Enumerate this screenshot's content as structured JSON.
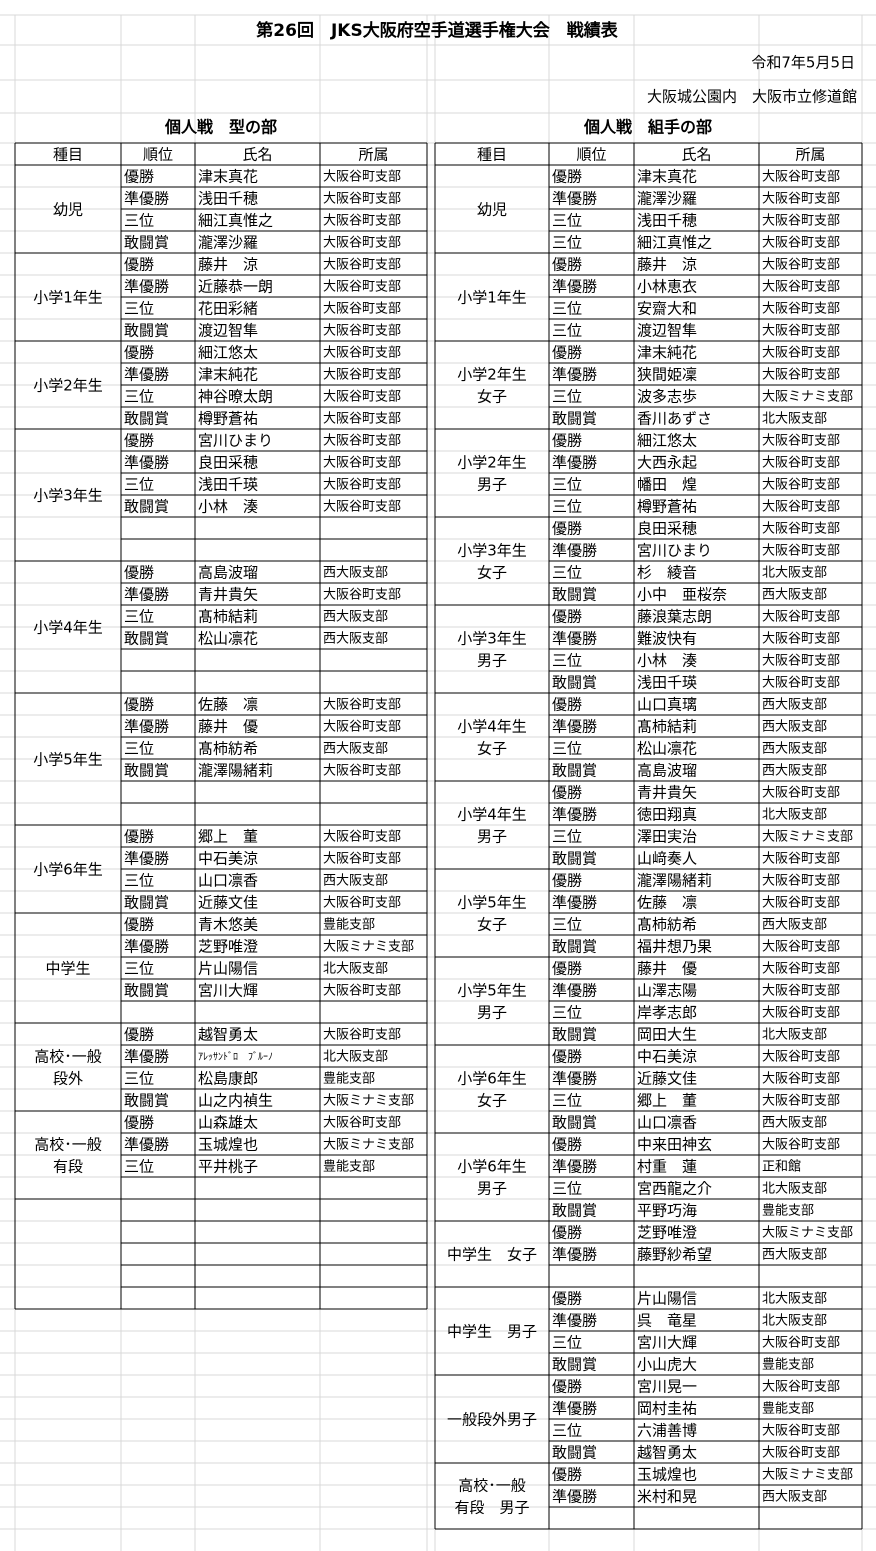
{
  "header": {
    "title": "第26回　JKS大阪府空手道選手権大会　戦績表",
    "date": "令和7年5月5日",
    "venue": "大阪城公園内　大阪市立修道館"
  },
  "left": {
    "heading": "個人戦　型の部",
    "columns": [
      "種目",
      "順位",
      "氏名",
      "所属"
    ],
    "groups": [
      {
        "category": [
          "幼児"
        ],
        "rows": [
          [
            "優勝",
            "津末真花",
            "大阪谷町支部"
          ],
          [
            "準優勝",
            "浅田千穂",
            "大阪谷町支部"
          ],
          [
            "三位",
            "細江真惟之",
            "大阪谷町支部"
          ],
          [
            "敢闘賞",
            "瀧澤沙羅",
            "大阪谷町支部"
          ]
        ]
      },
      {
        "category": [
          "小学1年生"
        ],
        "rows": [
          [
            "優勝",
            "藤井　涼",
            "大阪谷町支部"
          ],
          [
            "準優勝",
            "近藤恭一朗",
            "大阪谷町支部"
          ],
          [
            "三位",
            "花田彩緒",
            "大阪谷町支部"
          ],
          [
            "敢闘賞",
            "渡辺智隼",
            "大阪谷町支部"
          ]
        ]
      },
      {
        "category": [
          "小学2年生"
        ],
        "rows": [
          [
            "優勝",
            "細江悠太",
            "大阪谷町支部"
          ],
          [
            "準優勝",
            "津末純花",
            "大阪谷町支部"
          ],
          [
            "三位",
            "神谷暸太朗",
            "大阪谷町支部"
          ],
          [
            "敢闘賞",
            "樽野蒼祐",
            "大阪谷町支部"
          ]
        ]
      },
      {
        "category": [
          "小学3年生"
        ],
        "rows": [
          [
            "優勝",
            "宮川ひまり",
            "大阪谷町支部"
          ],
          [
            "準優勝",
            "良田采穂",
            "大阪谷町支部"
          ],
          [
            "三位",
            "浅田千瑛",
            "大阪谷町支部"
          ],
          [
            "敢闘賞",
            "小林　湊",
            "大阪谷町支部"
          ]
        ]
      },
      {
        "category": [
          "小学4年生"
        ],
        "rows": [
          [
            "優勝",
            "高島波瑠",
            "西大阪支部"
          ],
          [
            "準優勝",
            "青井貴矢",
            "大阪谷町支部"
          ],
          [
            "三位",
            "髙柿結莉",
            "西大阪支部"
          ],
          [
            "敢闘賞",
            "松山凛花",
            "西大阪支部"
          ]
        ]
      },
      {
        "category": [
          "小学5年生"
        ],
        "rows": [
          [
            "優勝",
            "佐藤　凛",
            "大阪谷町支部"
          ],
          [
            "準優勝",
            "藤井　優",
            "大阪谷町支部"
          ],
          [
            "三位",
            "髙柿紡希",
            "西大阪支部"
          ],
          [
            "敢闘賞",
            "瀧澤陽緒莉",
            "大阪谷町支部"
          ]
        ]
      },
      {
        "category": [
          "小学6年生"
        ],
        "rows": [
          [
            "優勝",
            "郷上　董",
            "大阪谷町支部"
          ],
          [
            "準優勝",
            "中石美涼",
            "大阪谷町支部"
          ],
          [
            "三位",
            "山口凛香",
            "西大阪支部"
          ],
          [
            "敢闘賞",
            "近藤文佳",
            "大阪谷町支部"
          ]
        ]
      },
      {
        "category": [
          "中学生"
        ],
        "rows": [
          [
            "優勝",
            "青木悠美",
            "豊能支部"
          ],
          [
            "準優勝",
            "芝野唯澄",
            "大阪ミナミ支部"
          ],
          [
            "三位",
            "片山陽信",
            "北大阪支部"
          ],
          [
            "敢闘賞",
            "宮川大輝",
            "大阪谷町支部"
          ]
        ]
      },
      {
        "category": [
          "高校･一般",
          "段外"
        ],
        "rows": [
          [
            "優勝",
            "越智勇太",
            "大阪谷町支部"
          ],
          [
            "準優勝",
            "ｱﾚｯｻﾝﾄﾞﾛ　ﾌﾞﾙｰﾉ",
            "北大阪支部"
          ],
          [
            "三位",
            "松島康郎",
            "豊能支部"
          ],
          [
            "敢闘賞",
            "山之内禎生",
            "大阪ミナミ支部"
          ]
        ]
      },
      {
        "category": [
          "高校･一般",
          "有段"
        ],
        "rows": [
          [
            "優勝",
            "山森雄太",
            "大阪谷町支部"
          ],
          [
            "準優勝",
            "玉城煌也",
            "大阪ミナミ支部"
          ],
          [
            "三位",
            "平井桃子",
            "豊能支部"
          ]
        ]
      }
    ]
  },
  "right": {
    "heading": "個人戦　組手の部",
    "columns": [
      "種目",
      "順位",
      "氏名",
      "所属"
    ],
    "groups": [
      {
        "category": [
          "幼児"
        ],
        "rows": [
          [
            "優勝",
            "津末真花",
            "大阪谷町支部"
          ],
          [
            "準優勝",
            "瀧澤沙羅",
            "大阪谷町支部"
          ],
          [
            "三位",
            "浅田千穂",
            "大阪谷町支部"
          ],
          [
            "三位",
            "細江真惟之",
            "大阪谷町支部"
          ]
        ]
      },
      {
        "category": [
          "小学1年生"
        ],
        "rows": [
          [
            "優勝",
            "藤井　涼",
            "大阪谷町支部"
          ],
          [
            "準優勝",
            "小林恵衣",
            "大阪谷町支部"
          ],
          [
            "三位",
            "安齋大和",
            "大阪谷町支部"
          ],
          [
            "三位",
            "渡辺智隼",
            "大阪谷町支部"
          ]
        ]
      },
      {
        "category": [
          "小学2年生",
          "女子"
        ],
        "rows": [
          [
            "優勝",
            "津末純花",
            "大阪谷町支部"
          ],
          [
            "準優勝",
            "狭間姫凜",
            "大阪谷町支部"
          ],
          [
            "三位",
            "波多志歩",
            "大阪ミナミ支部"
          ],
          [
            "敢闘賞",
            "香川あずさ",
            "北大阪支部"
          ]
        ]
      },
      {
        "category": [
          "小学2年生",
          "男子"
        ],
        "rows": [
          [
            "優勝",
            "細江悠太",
            "大阪谷町支部"
          ],
          [
            "準優勝",
            "大西永起",
            "大阪谷町支部"
          ],
          [
            "三位",
            "幡田　煌",
            "大阪谷町支部"
          ],
          [
            "三位",
            "樽野蒼祐",
            "大阪谷町支部"
          ]
        ]
      },
      {
        "category": [
          "小学3年生",
          "女子"
        ],
        "rows": [
          [
            "優勝",
            "良田采穂",
            "大阪谷町支部"
          ],
          [
            "準優勝",
            "宮川ひまり",
            "大阪谷町支部"
          ],
          [
            "三位",
            "杉　綾音",
            "北大阪支部"
          ],
          [
            "敢闘賞",
            "小中　亜桜奈",
            "西大阪支部"
          ]
        ]
      },
      {
        "category": [
          "小学3年生",
          "男子"
        ],
        "rows": [
          [
            "優勝",
            "藤浪葉志朗",
            "大阪谷町支部"
          ],
          [
            "準優勝",
            "難波快有",
            "大阪谷町支部"
          ],
          [
            "三位",
            "小林　湊",
            "大阪谷町支部"
          ],
          [
            "敢闘賞",
            "浅田千瑛",
            "大阪谷町支部"
          ]
        ]
      },
      {
        "category": [
          "小学4年生",
          "女子"
        ],
        "rows": [
          [
            "優勝",
            "山口真璃",
            "西大阪支部"
          ],
          [
            "準優勝",
            "髙柿結莉",
            "西大阪支部"
          ],
          [
            "三位",
            "松山凛花",
            "西大阪支部"
          ],
          [
            "敢闘賞",
            "高島波瑠",
            "西大阪支部"
          ]
        ]
      },
      {
        "category": [
          "小学4年生",
          "男子"
        ],
        "rows": [
          [
            "優勝",
            "青井貴矢",
            "大阪谷町支部"
          ],
          [
            "準優勝",
            "徳田翔真",
            "北大阪支部"
          ],
          [
            "三位",
            "澤田実治",
            "大阪ミナミ支部"
          ],
          [
            "敢闘賞",
            "山﨑奏人",
            "大阪谷町支部"
          ]
        ]
      },
      {
        "category": [
          "小学5年生",
          "女子"
        ],
        "rows": [
          [
            "優勝",
            "瀧澤陽緒莉",
            "大阪谷町支部"
          ],
          [
            "準優勝",
            "佐藤　凛",
            "大阪谷町支部"
          ],
          [
            "三位",
            "髙柿紡希",
            "西大阪支部"
          ],
          [
            "敢闘賞",
            "福井想乃果",
            "大阪谷町支部"
          ]
        ]
      },
      {
        "category": [
          "小学5年生",
          "男子"
        ],
        "rows": [
          [
            "優勝",
            "藤井　優",
            "大阪谷町支部"
          ],
          [
            "準優勝",
            "山澤志陽",
            "大阪谷町支部"
          ],
          [
            "三位",
            "岸孝志郎",
            "大阪谷町支部"
          ],
          [
            "敢闘賞",
            "岡田大生",
            "北大阪支部"
          ]
        ]
      },
      {
        "category": [
          "小学6年生",
          "女子"
        ],
        "rows": [
          [
            "優勝",
            "中石美涼",
            "大阪谷町支部"
          ],
          [
            "準優勝",
            "近藤文佳",
            "大阪谷町支部"
          ],
          [
            "三位",
            "郷上　董",
            "大阪谷町支部"
          ],
          [
            "敢闘賞",
            "山口凛香",
            "西大阪支部"
          ]
        ]
      },
      {
        "category": [
          "小学6年生",
          "男子"
        ],
        "rows": [
          [
            "優勝",
            "中来田神玄",
            "大阪谷町支部"
          ],
          [
            "準優勝",
            "村重　蓮",
            "正和館"
          ],
          [
            "三位",
            "宮西龍之介",
            "北大阪支部"
          ],
          [
            "敢闘賞",
            "平野巧海",
            "豊能支部"
          ]
        ]
      },
      {
        "category": [
          "中学生　女子"
        ],
        "rows": [
          [
            "優勝",
            "芝野唯澄",
            "大阪ミナミ支部"
          ],
          [
            "準優勝",
            "藤野紗希望",
            "西大阪支部"
          ]
        ]
      },
      {
        "category": [
          "中学生　男子"
        ],
        "rows": [
          [
            "優勝",
            "片山陽信",
            "北大阪支部"
          ],
          [
            "準優勝",
            "呉　竜星",
            "北大阪支部"
          ],
          [
            "三位",
            "宮川大輝",
            "大阪谷町支部"
          ],
          [
            "敢闘賞",
            "小山虎大",
            "豊能支部"
          ]
        ]
      },
      {
        "category": [
          "一般段外男子"
        ],
        "rows": [
          [
            "優勝",
            "宮川晃一",
            "大阪谷町支部"
          ],
          [
            "準優勝",
            "岡村圭祐",
            "豊能支部"
          ],
          [
            "三位",
            "六浦善博",
            "大阪谷町支部"
          ],
          [
            "敢闘賞",
            "越智勇太",
            "大阪谷町支部"
          ]
        ]
      },
      {
        "category": [
          "高校･一般",
          "有段　男子"
        ],
        "rows": [
          [
            "優勝",
            "玉城煌也",
            "大阪ミナミ支部"
          ],
          [
            "準優勝",
            "米村和晃",
            "西大阪支部"
          ]
        ]
      }
    ]
  }
}
